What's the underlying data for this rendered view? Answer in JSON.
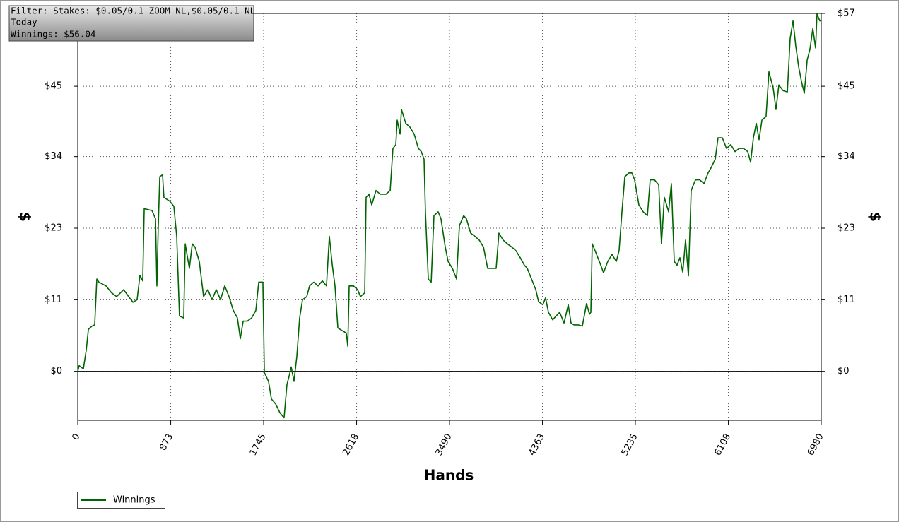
{
  "chart_data": {
    "type": "line",
    "annotations": [
      "Filter: Stakes: $0.05/0.1 ZOOM NL,$0.05/0.1 NL",
      "Today",
      "Winnings: $56.04"
    ],
    "xlabel": "Hands",
    "ylabel": "$",
    "x": [
      0,
      13,
      53,
      80,
      100,
      133,
      159,
      179,
      199,
      265,
      318,
      365,
      431,
      478,
      518,
      557,
      584,
      610,
      624,
      697,
      730,
      743,
      756,
      770,
      796,
      809,
      863,
      902,
      929,
      955,
      995,
      1009,
      1048,
      1075,
      1101,
      1141,
      1181,
      1221,
      1261,
      1300,
      1340,
      1380,
      1420,
      1460,
      1499,
      1526,
      1553,
      1592,
      1632,
      1672,
      1699,
      1738,
      1752,
      1791,
      1818,
      1858,
      1898,
      1937,
      1964,
      1990,
      2004,
      2030,
      2057,
      2083,
      2110,
      2150,
      2176,
      2216,
      2256,
      2296,
      2335,
      2362,
      2389,
      2415,
      2442,
      2481,
      2521,
      2535,
      2548,
      2588,
      2627,
      2654,
      2694,
      2707,
      2734,
      2760,
      2800,
      2840,
      2893,
      2933,
      2959,
      2986,
      2999,
      3026,
      3039,
      3079,
      3118,
      3158,
      3198,
      3225,
      3251,
      3264,
      3291,
      3318,
      3344,
      3384,
      3410,
      3450,
      3477,
      3517,
      3556,
      3583,
      3623,
      3649,
      3689,
      3729,
      3769,
      3809,
      3848,
      3888,
      3928,
      3954,
      3994,
      4034,
      4074,
      4114,
      4154,
      4193,
      4220,
      4260,
      4300,
      4326,
      4366,
      4392,
      4419,
      4459,
      4485,
      4525,
      4565,
      4605,
      4631,
      4658,
      4698,
      4737,
      4777,
      4804,
      4817,
      4830,
      4857,
      4897,
      4936,
      4976,
      5016,
      5056,
      5082,
      5109,
      5136,
      5175,
      5202,
      5228,
      5268,
      5308,
      5348,
      5374,
      5414,
      5454,
      5480,
      5507,
      5547,
      5573,
      5600,
      5626,
      5653,
      5680,
      5706,
      5733,
      5759,
      5799,
      5839,
      5879,
      5918,
      5945,
      5985,
      6011,
      6051,
      6091,
      6131,
      6171,
      6210,
      6250,
      6290,
      6317,
      6343,
      6370,
      6396,
      6423,
      6462,
      6489,
      6529,
      6555,
      6582,
      6622,
      6662,
      6688,
      6715,
      6741,
      6768,
      6794,
      6821,
      6848,
      6874,
      6901,
      6927,
      6940,
      6967,
      6980
    ],
    "series": [
      {
        "name": "Winnings",
        "color": "#006400",
        "values": [
          0,
          0.9,
          0.4,
          3.4,
          6.7,
          7.2,
          7.4,
          14.7,
          14.2,
          13.6,
          12.5,
          11.9,
          13.0,
          11.9,
          11.0,
          11.4,
          15.3,
          14.4,
          25.9,
          25.6,
          24.3,
          13.6,
          23.2,
          31.0,
          31.3,
          27.7,
          27.1,
          26.3,
          21.5,
          8.8,
          8.5,
          20.3,
          16.4,
          20.3,
          19.8,
          17.5,
          11.9,
          13.0,
          11.4,
          13.0,
          11.4,
          13.6,
          11.9,
          9.7,
          8.5,
          5.2,
          8.0,
          8.0,
          8.5,
          9.7,
          14.2,
          14.2,
          -0.2,
          -1.6,
          -4.4,
          -5.2,
          -6.6,
          -7.4,
          -2.1,
          -0.4,
          0.7,
          -1.6,
          2.4,
          8.5,
          11.4,
          11.9,
          13.6,
          14.2,
          13.6,
          14.4,
          13.6,
          21.5,
          17.0,
          13.6,
          6.9,
          6.5,
          6.1,
          4.0,
          13.6,
          13.6,
          13.0,
          11.9,
          12.5,
          27.7,
          28.2,
          26.5,
          28.8,
          28.2,
          28.2,
          28.8,
          35.5,
          36.1,
          40.0,
          37.8,
          41.7,
          39.5,
          38.9,
          37.8,
          35.5,
          35.0,
          33.8,
          25.4,
          14.7,
          14.2,
          24.8,
          25.4,
          24.3,
          19.8,
          17.5,
          16.4,
          14.7,
          23.2,
          24.8,
          24.3,
          22.0,
          21.5,
          20.9,
          19.8,
          16.4,
          16.4,
          16.4,
          22.0,
          20.9,
          20.3,
          19.8,
          19.2,
          18.1,
          16.9,
          16.4,
          14.7,
          13.0,
          11.1,
          10.6,
          11.7,
          9.4,
          8.2,
          8.7,
          9.4,
          7.7,
          10.6,
          7.7,
          7.4,
          7.4,
          7.2,
          10.8,
          9.1,
          9.4,
          20.3,
          19.2,
          17.5,
          15.7,
          17.5,
          18.6,
          17.5,
          19.2,
          25.4,
          31.0,
          31.6,
          31.6,
          30.5,
          26.5,
          25.4,
          24.8,
          30.5,
          30.5,
          29.7,
          20.3,
          27.7,
          25.4,
          29.9,
          17.5,
          16.9,
          18.1,
          15.8,
          20.9,
          15.2,
          28.8,
          30.5,
          30.5,
          29.9,
          31.6,
          32.4,
          33.8,
          37.2,
          37.2,
          35.5,
          36.1,
          35.0,
          35.5,
          35.5,
          35.0,
          33.3,
          37.2,
          39.5,
          36.9,
          40.0,
          40.6,
          47.7,
          45.1,
          41.7,
          45.6,
          44.7,
          44.5,
          53.0,
          55.8,
          51.8,
          48.5,
          46.2,
          44.3,
          49.6,
          51.3,
          54.6,
          51.5,
          56.9,
          55.8,
          56.04
        ]
      }
    ],
    "xlim": [
      0,
      6980
    ],
    "xticks": [
      0,
      873,
      1745,
      2618,
      3490,
      4363,
      5235,
      6108,
      6980
    ],
    "ylim": [
      -7.8,
      57
    ],
    "yticks": [
      {
        "value": 0,
        "label": "$0"
      },
      {
        "value": 11.4,
        "label": "$11"
      },
      {
        "value": 22.8,
        "label": "$23"
      },
      {
        "value": 34.2,
        "label": "$34"
      },
      {
        "value": 45.4,
        "label": "$45"
      },
      {
        "value": 57,
        "label": "$57"
      }
    ],
    "grid": true,
    "legend": "lower left"
  }
}
